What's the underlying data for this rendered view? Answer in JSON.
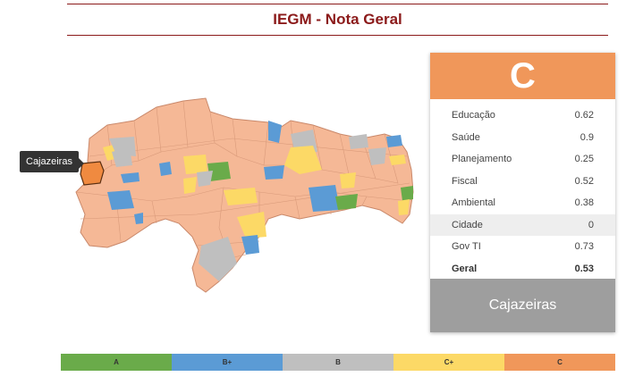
{
  "title": "IEGM - Nota Geral",
  "tooltip": "Cajazeiras",
  "card": {
    "grade": "C",
    "grade_color": "#f0975a",
    "rows": [
      {
        "label": "Educação",
        "value": "0.62"
      },
      {
        "label": "Saúde",
        "value": "0.9"
      },
      {
        "label": "Planejamento",
        "value": "0.25"
      },
      {
        "label": "Fiscal",
        "value": "0.52"
      },
      {
        "label": "Ambiental",
        "value": "0.38"
      },
      {
        "label": "Cidade",
        "value": "0"
      },
      {
        "label": "Gov TI",
        "value": "0.73"
      },
      {
        "label": "Geral",
        "value": "0.53"
      }
    ],
    "municipality": "Cajazeiras"
  },
  "legend": [
    {
      "label": "A",
      "color": "#6aab4a"
    },
    {
      "label": "B+",
      "color": "#5b9bd5"
    },
    {
      "label": "B",
      "color": "#bfbfbf"
    },
    {
      "label": "C+",
      "color": "#fcd966"
    },
    {
      "label": "C",
      "color": "#f0975a"
    }
  ],
  "map_colors": {
    "base": "#f5b896",
    "selected": "#f08a40",
    "border": "#c9886a"
  }
}
